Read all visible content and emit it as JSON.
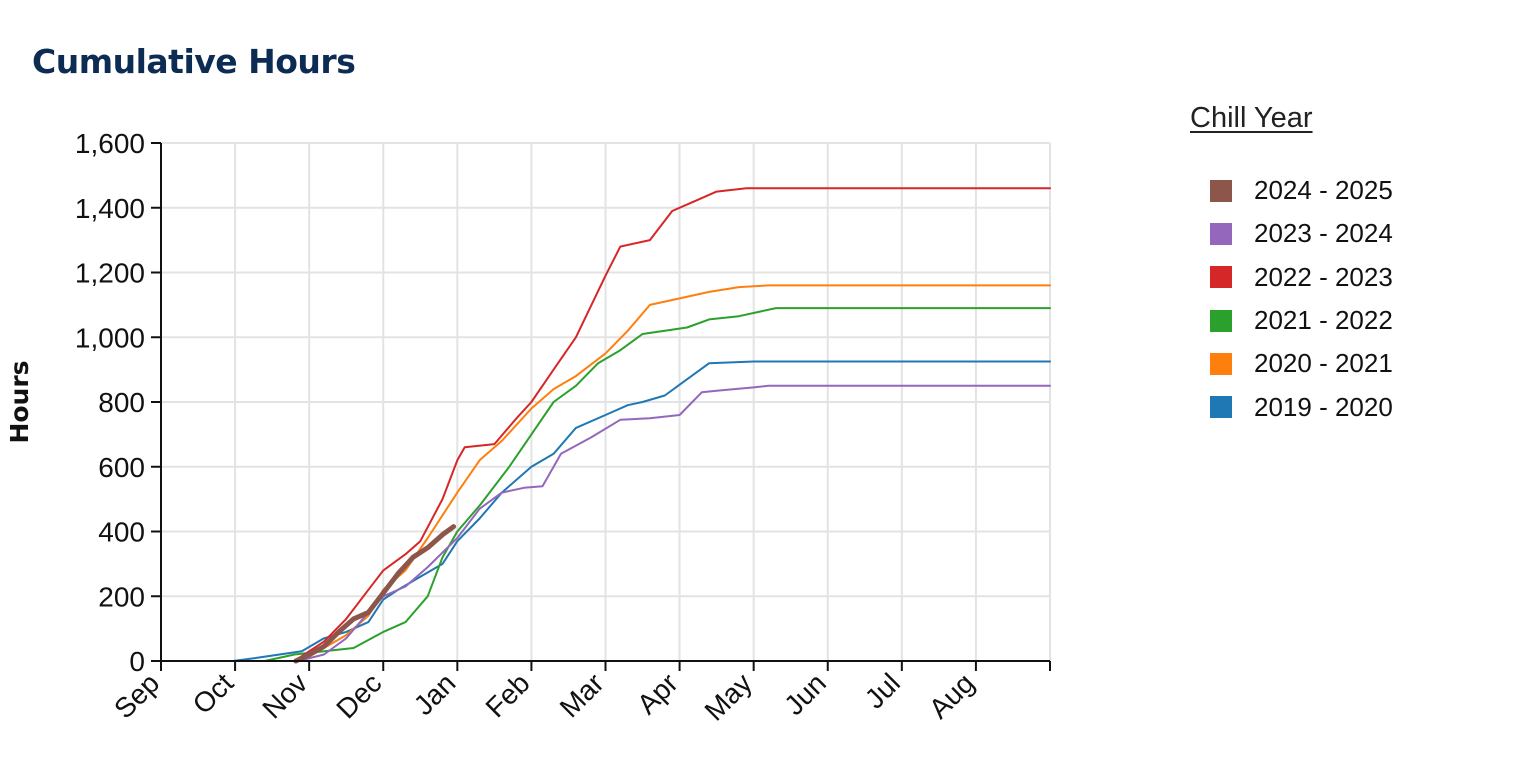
{
  "chart_data": {
    "type": "line",
    "title": "Cumulative Hours",
    "xlabel": "",
    "ylabel": "Hours",
    "x_tick_labels": [
      "Sep",
      "Oct",
      "Nov",
      "Dec",
      "Jan",
      "Feb",
      "Mar",
      "Apr",
      "May",
      "Jun",
      "Jul",
      "Aug"
    ],
    "x_unit": "months since Sep 1",
    "xlim": [
      0,
      12
    ],
    "ylim": [
      0,
      1600
    ],
    "y_ticks": [
      0,
      200,
      400,
      600,
      800,
      1000,
      1200,
      1400,
      1600
    ],
    "y_tick_labels": [
      "0",
      "200",
      "400",
      "600",
      "800",
      "1,000",
      "1,200",
      "1,400",
      "1,600"
    ],
    "grid": true,
    "legend_title": "Chill Year",
    "legend_position": "right",
    "series": [
      {
        "name": "2024 - 2025",
        "color": "#8c564b",
        "width": 5,
        "x": [
          1.82,
          2.0,
          2.2,
          2.4,
          2.6,
          2.8,
          3.0,
          3.2,
          3.4,
          3.6,
          3.8,
          3.95
        ],
        "y": [
          0,
          20,
          45,
          90,
          130,
          150,
          210,
          270,
          320,
          350,
          390,
          415
        ]
      },
      {
        "name": "2023 - 2024",
        "color": "#9467bd",
        "width": 2,
        "x": [
          1.85,
          2.2,
          2.5,
          2.8,
          3.0,
          3.3,
          3.6,
          4.0,
          4.3,
          4.6,
          4.9,
          5.15,
          5.4,
          5.8,
          6.2,
          6.6,
          7.0,
          7.3,
          7.5,
          8.0,
          8.2,
          12.0
        ],
        "y": [
          0,
          20,
          70,
          150,
          200,
          230,
          290,
          380,
          470,
          520,
          535,
          540,
          640,
          690,
          745,
          750,
          760,
          830,
          835,
          845,
          850,
          850
        ]
      },
      {
        "name": "2022 - 2023",
        "color": "#d62728",
        "width": 2,
        "x": [
          1.8,
          2.2,
          2.5,
          2.8,
          3.0,
          3.3,
          3.5,
          3.8,
          4.0,
          4.1,
          4.5,
          4.8,
          5.0,
          5.3,
          5.6,
          6.0,
          6.2,
          6.6,
          6.9,
          7.2,
          7.5,
          7.9,
          8.2,
          12.0
        ],
        "y": [
          0,
          60,
          130,
          220,
          280,
          330,
          370,
          500,
          620,
          660,
          670,
          750,
          800,
          900,
          1000,
          1190,
          1280,
          1300,
          1390,
          1420,
          1450,
          1460,
          1460,
          1460
        ]
      },
      {
        "name": "2021 - 2022",
        "color": "#2ca02c",
        "width": 2,
        "x": [
          1.4,
          1.8,
          2.2,
          2.6,
          3.0,
          3.3,
          3.6,
          3.8,
          4.0,
          4.3,
          4.7,
          5.0,
          5.3,
          5.6,
          5.9,
          6.2,
          6.5,
          6.8,
          7.1,
          7.4,
          7.8,
          8.3,
          12.0
        ],
        "y": [
          0,
          20,
          30,
          40,
          90,
          120,
          200,
          320,
          400,
          480,
          600,
          700,
          800,
          850,
          920,
          960,
          1010,
          1020,
          1030,
          1055,
          1065,
          1090,
          1090
        ]
      },
      {
        "name": "2020 - 2021",
        "color": "#ff7f0e",
        "width": 2,
        "x": [
          1.9,
          2.2,
          2.5,
          2.8,
          3.0,
          3.3,
          3.6,
          3.8,
          4.0,
          4.3,
          4.6,
          5.0,
          5.3,
          5.6,
          6.0,
          6.3,
          6.6,
          7.0,
          7.4,
          7.8,
          8.2,
          12.0
        ],
        "y": [
          0,
          40,
          80,
          140,
          220,
          280,
          380,
          450,
          520,
          620,
          680,
          780,
          840,
          880,
          950,
          1020,
          1100,
          1120,
          1140,
          1155,
          1160,
          1160
        ]
      },
      {
        "name": "2019 - 2020",
        "color": "#1f77b4",
        "width": 2,
        "x": [
          0.97,
          1.3,
          1.6,
          1.9,
          2.2,
          2.5,
          2.8,
          3.0,
          3.2,
          3.5,
          3.8,
          4.0,
          4.3,
          4.6,
          5.0,
          5.3,
          5.6,
          6.0,
          6.3,
          6.5,
          6.8,
          7.1,
          7.4,
          8.0,
          12.0
        ],
        "y": [
          0,
          10,
          20,
          30,
          70,
          90,
          120,
          190,
          220,
          260,
          300,
          370,
          440,
          520,
          600,
          640,
          720,
          760,
          790,
          800,
          820,
          870,
          920,
          925,
          925
        ]
      }
    ]
  }
}
